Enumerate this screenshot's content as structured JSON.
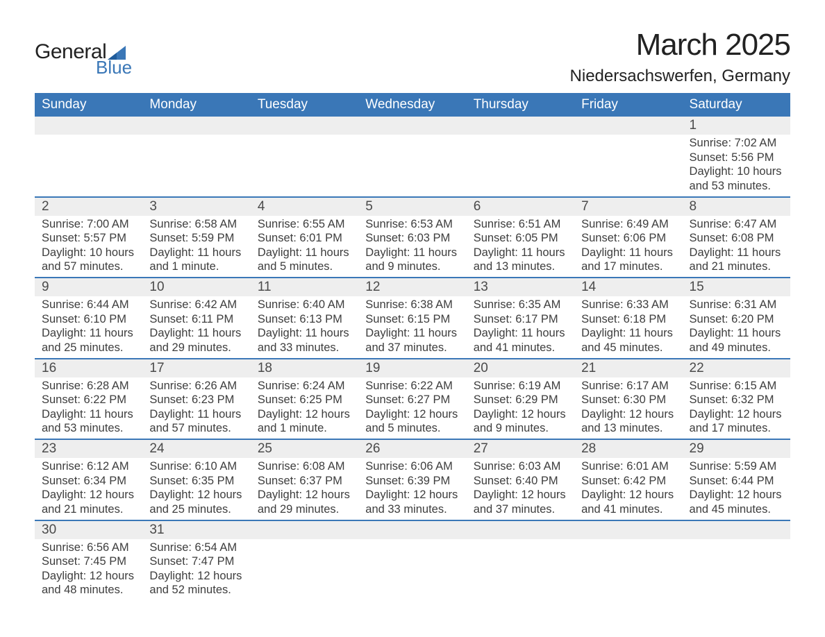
{
  "logo": {
    "general": "General",
    "blue": "Blue"
  },
  "title": "March 2025",
  "subtitle": "Niedersachswerfen, Germany",
  "colors": {
    "header_bg": "#3a77b7",
    "header_fg": "#ffffff",
    "daynum_bg": "#eeeeee",
    "row_border": "#3a77b7",
    "text": "#3d3d3d"
  },
  "day_headers": [
    "Sunday",
    "Monday",
    "Tuesday",
    "Wednesday",
    "Thursday",
    "Friday",
    "Saturday"
  ],
  "weeks": [
    [
      null,
      null,
      null,
      null,
      null,
      null,
      {
        "n": "1",
        "sr": "7:02 AM",
        "ss": "5:56 PM",
        "dl1": "10 hours",
        "dl2": "and 53 minutes."
      }
    ],
    [
      {
        "n": "2",
        "sr": "7:00 AM",
        "ss": "5:57 PM",
        "dl1": "10 hours",
        "dl2": "and 57 minutes."
      },
      {
        "n": "3",
        "sr": "6:58 AM",
        "ss": "5:59 PM",
        "dl1": "11 hours",
        "dl2": "and 1 minute."
      },
      {
        "n": "4",
        "sr": "6:55 AM",
        "ss": "6:01 PM",
        "dl1": "11 hours",
        "dl2": "and 5 minutes."
      },
      {
        "n": "5",
        "sr": "6:53 AM",
        "ss": "6:03 PM",
        "dl1": "11 hours",
        "dl2": "and 9 minutes."
      },
      {
        "n": "6",
        "sr": "6:51 AM",
        "ss": "6:05 PM",
        "dl1": "11 hours",
        "dl2": "and 13 minutes."
      },
      {
        "n": "7",
        "sr": "6:49 AM",
        "ss": "6:06 PM",
        "dl1": "11 hours",
        "dl2": "and 17 minutes."
      },
      {
        "n": "8",
        "sr": "6:47 AM",
        "ss": "6:08 PM",
        "dl1": "11 hours",
        "dl2": "and 21 minutes."
      }
    ],
    [
      {
        "n": "9",
        "sr": "6:44 AM",
        "ss": "6:10 PM",
        "dl1": "11 hours",
        "dl2": "and 25 minutes."
      },
      {
        "n": "10",
        "sr": "6:42 AM",
        "ss": "6:11 PM",
        "dl1": "11 hours",
        "dl2": "and 29 minutes."
      },
      {
        "n": "11",
        "sr": "6:40 AM",
        "ss": "6:13 PM",
        "dl1": "11 hours",
        "dl2": "and 33 minutes."
      },
      {
        "n": "12",
        "sr": "6:38 AM",
        "ss": "6:15 PM",
        "dl1": "11 hours",
        "dl2": "and 37 minutes."
      },
      {
        "n": "13",
        "sr": "6:35 AM",
        "ss": "6:17 PM",
        "dl1": "11 hours",
        "dl2": "and 41 minutes."
      },
      {
        "n": "14",
        "sr": "6:33 AM",
        "ss": "6:18 PM",
        "dl1": "11 hours",
        "dl2": "and 45 minutes."
      },
      {
        "n": "15",
        "sr": "6:31 AM",
        "ss": "6:20 PM",
        "dl1": "11 hours",
        "dl2": "and 49 minutes."
      }
    ],
    [
      {
        "n": "16",
        "sr": "6:28 AM",
        "ss": "6:22 PM",
        "dl1": "11 hours",
        "dl2": "and 53 minutes."
      },
      {
        "n": "17",
        "sr": "6:26 AM",
        "ss": "6:23 PM",
        "dl1": "11 hours",
        "dl2": "and 57 minutes."
      },
      {
        "n": "18",
        "sr": "6:24 AM",
        "ss": "6:25 PM",
        "dl1": "12 hours",
        "dl2": "and 1 minute."
      },
      {
        "n": "19",
        "sr": "6:22 AM",
        "ss": "6:27 PM",
        "dl1": "12 hours",
        "dl2": "and 5 minutes."
      },
      {
        "n": "20",
        "sr": "6:19 AM",
        "ss": "6:29 PM",
        "dl1": "12 hours",
        "dl2": "and 9 minutes."
      },
      {
        "n": "21",
        "sr": "6:17 AM",
        "ss": "6:30 PM",
        "dl1": "12 hours",
        "dl2": "and 13 minutes."
      },
      {
        "n": "22",
        "sr": "6:15 AM",
        "ss": "6:32 PM",
        "dl1": "12 hours",
        "dl2": "and 17 minutes."
      }
    ],
    [
      {
        "n": "23",
        "sr": "6:12 AM",
        "ss": "6:34 PM",
        "dl1": "12 hours",
        "dl2": "and 21 minutes."
      },
      {
        "n": "24",
        "sr": "6:10 AM",
        "ss": "6:35 PM",
        "dl1": "12 hours",
        "dl2": "and 25 minutes."
      },
      {
        "n": "25",
        "sr": "6:08 AM",
        "ss": "6:37 PM",
        "dl1": "12 hours",
        "dl2": "and 29 minutes."
      },
      {
        "n": "26",
        "sr": "6:06 AM",
        "ss": "6:39 PM",
        "dl1": "12 hours",
        "dl2": "and 33 minutes."
      },
      {
        "n": "27",
        "sr": "6:03 AM",
        "ss": "6:40 PM",
        "dl1": "12 hours",
        "dl2": "and 37 minutes."
      },
      {
        "n": "28",
        "sr": "6:01 AM",
        "ss": "6:42 PM",
        "dl1": "12 hours",
        "dl2": "and 41 minutes."
      },
      {
        "n": "29",
        "sr": "5:59 AM",
        "ss": "6:44 PM",
        "dl1": "12 hours",
        "dl2": "and 45 minutes."
      }
    ],
    [
      {
        "n": "30",
        "sr": "6:56 AM",
        "ss": "7:45 PM",
        "dl1": "12 hours",
        "dl2": "and 48 minutes."
      },
      {
        "n": "31",
        "sr": "6:54 AM",
        "ss": "7:47 PM",
        "dl1": "12 hours",
        "dl2": "and 52 minutes."
      },
      null,
      null,
      null,
      null,
      null
    ]
  ],
  "labels": {
    "sunrise_prefix": "Sunrise: ",
    "sunset_prefix": "Sunset: ",
    "daylight_prefix": "Daylight: "
  }
}
